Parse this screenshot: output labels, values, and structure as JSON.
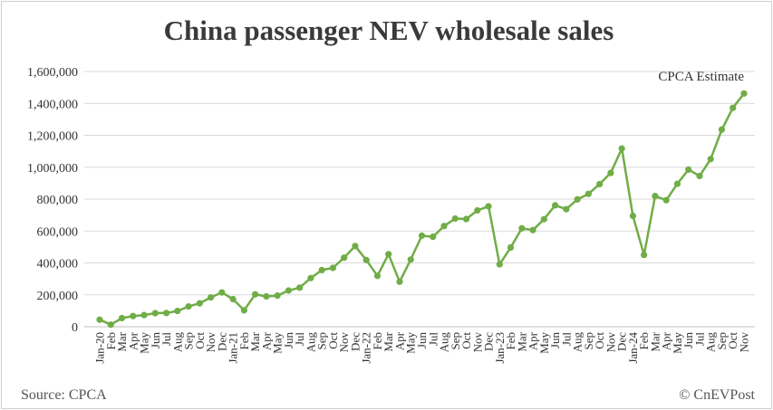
{
  "chart_data": {
    "type": "line",
    "title": "China passenger NEV wholesale sales",
    "source": "Source: CPCA",
    "credit": "© CnEVPost",
    "annotation": "CPCA Estimate",
    "ylim": [
      0,
      1600000
    ],
    "yticks": [
      0,
      200000,
      400000,
      600000,
      800000,
      1000000,
      1200000,
      1400000,
      1600000
    ],
    "ytick_labels": [
      "0",
      "200,000",
      "400,000",
      "600,000",
      "800,000",
      "1,000,000",
      "1,200,000",
      "1,400,000",
      "1,600,000"
    ],
    "grid": true,
    "color": "#70ad47",
    "categories": [
      "Jan-20",
      "Feb",
      "Mar",
      "Apr",
      "May",
      "Jun",
      "Jul",
      "Aug",
      "Sep",
      "Oct",
      "Nov",
      "Dec",
      "Jan-21",
      "Feb",
      "Mar",
      "Apr",
      "May",
      "Jun",
      "Jul",
      "Aug",
      "Sep",
      "Oct",
      "Nov",
      "Dec",
      "Jan-22",
      "Feb",
      "Mar",
      "Apr",
      "May",
      "Jun",
      "Jul",
      "Aug",
      "Sep",
      "Oct",
      "Nov",
      "Dec",
      "Jan-23",
      "Feb",
      "Mar",
      "Apr",
      "May",
      "Jun",
      "Jul",
      "Aug",
      "Sep",
      "Oct",
      "Nov",
      "Dec",
      "Jan-24",
      "Feb",
      "Mar",
      "Apr",
      "May",
      "Jun",
      "Jul",
      "Aug",
      "Sep",
      "Oct",
      "Nov"
    ],
    "values": [
      44000,
      13000,
      54000,
      67000,
      73000,
      85000,
      86000,
      99000,
      127000,
      147000,
      184000,
      215000,
      173000,
      103000,
      203000,
      190000,
      195000,
      227000,
      245000,
      305000,
      355000,
      369000,
      433000,
      506000,
      418000,
      319000,
      455000,
      282000,
      421000,
      571000,
      564000,
      631000,
      678000,
      675000,
      729000,
      755000,
      391000,
      497000,
      617000,
      606000,
      674000,
      761000,
      737000,
      798000,
      833000,
      894000,
      964000,
      1117000,
      695000,
      450000,
      819000,
      793000,
      896000,
      985000,
      945000,
      1051000,
      1236000,
      1372000,
      1462000
    ]
  }
}
